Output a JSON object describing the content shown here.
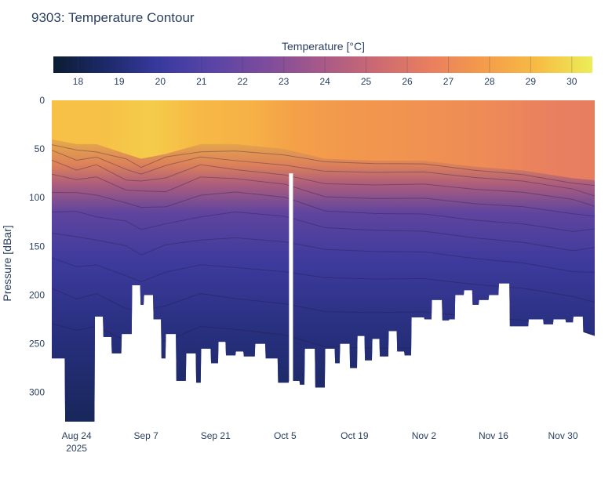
{
  "chart_data": {
    "type": "heatmap",
    "title": "9303: Temperature Contour",
    "xlabel": "",
    "ylabel": "Pressure [dBar]",
    "colorbar": {
      "title": "Temperature [°C]",
      "ticks": [
        18,
        19,
        20,
        21,
        22,
        23,
        24,
        25,
        26,
        27,
        28,
        29,
        30
      ],
      "range": [
        17.4,
        30.5
      ],
      "colors": [
        "#0d0887",
        "#46039f",
        "#7201a8",
        "#9c179e",
        "#bd3786",
        "#d8576b",
        "#ed7953",
        "#fb9f3a",
        "#fdca26",
        "#f0f921"
      ],
      "display_colors": [
        "#0b1d33",
        "#1c2a6b",
        "#3a3aa0",
        "#5b45a6",
        "#7f4c9c",
        "#a85a87",
        "#cc6a72",
        "#e97f5f",
        "#f49c4a",
        "#f7bd44",
        "#ecee58"
      ]
    },
    "x_ticks": [
      {
        "label": "Aug 24",
        "sub": "2025",
        "day": 0
      },
      {
        "label": "Sep 7",
        "sub": "",
        "day": 14
      },
      {
        "label": "Sep 21",
        "sub": "",
        "day": 28
      },
      {
        "label": "Oct 5",
        "sub": "",
        "day": 42
      },
      {
        "label": "Oct 19",
        "sub": "",
        "day": 56
      },
      {
        "label": "Nov 2",
        "sub": "",
        "day": 70
      },
      {
        "label": "Nov 16",
        "sub": "",
        "day": 84
      },
      {
        "label": "Nov 30",
        "sub": "",
        "day": 98
      }
    ],
    "x_range_days": [
      -5,
      104.4
    ],
    "y_ticks": [
      0,
      50,
      100,
      150,
      200,
      250,
      300
    ],
    "y_range": [
      0,
      330
    ],
    "gap_days": [
      42.8,
      43.6
    ],
    "mixed_layer_depth": [
      {
        "day": -5,
        "depth": 40
      },
      {
        "day": 0,
        "depth": 45
      },
      {
        "day": 4,
        "depth": 45
      },
      {
        "day": 10,
        "depth": 55
      },
      {
        "day": 13,
        "depth": 60
      },
      {
        "day": 18,
        "depth": 55
      },
      {
        "day": 25,
        "depth": 45
      },
      {
        "day": 32,
        "depth": 45
      },
      {
        "day": 42,
        "depth": 50
      },
      {
        "day": 50,
        "depth": 60
      },
      {
        "day": 60,
        "depth": 62
      },
      {
        "day": 70,
        "depth": 62
      },
      {
        "day": 80,
        "depth": 68
      },
      {
        "day": 90,
        "depth": 72
      },
      {
        "day": 100,
        "depth": 80
      },
      {
        "day": 104.4,
        "depth": 82
      }
    ],
    "surface_temperature": [
      {
        "day": -5,
        "temp": 29.3
      },
      {
        "day": 5,
        "temp": 29.3
      },
      {
        "day": 15,
        "temp": 29.6
      },
      {
        "day": 25,
        "temp": 29.0
      },
      {
        "day": 35,
        "temp": 28.7
      },
      {
        "day": 45,
        "temp": 28.0
      },
      {
        "day": 55,
        "temp": 27.7
      },
      {
        "day": 65,
        "temp": 27.5
      },
      {
        "day": 75,
        "temp": 27.3
      },
      {
        "day": 85,
        "temp": 27.0
      },
      {
        "day": 95,
        "temp": 26.6
      },
      {
        "day": 104.4,
        "temp": 26.5
      }
    ],
    "max_depth_profile": [
      {
        "day": -5,
        "depth": 265
      },
      {
        "day": -2.4,
        "depth": 265
      },
      {
        "day": -2.3,
        "depth": 330
      },
      {
        "day": 3.6,
        "depth": 330
      },
      {
        "day": 3.7,
        "depth": 222
      },
      {
        "day": 5.3,
        "depth": 222
      },
      {
        "day": 5.4,
        "depth": 243
      },
      {
        "day": 7.0,
        "depth": 243
      },
      {
        "day": 7.1,
        "depth": 260
      },
      {
        "day": 9.0,
        "depth": 260
      },
      {
        "day": 9.1,
        "depth": 240
      },
      {
        "day": 11.1,
        "depth": 240
      },
      {
        "day": 11.2,
        "depth": 190
      },
      {
        "day": 12.8,
        "depth": 190
      },
      {
        "day": 12.9,
        "depth": 210
      },
      {
        "day": 13.5,
        "depth": 210
      },
      {
        "day": 13.6,
        "depth": 200
      },
      {
        "day": 15.4,
        "depth": 200
      },
      {
        "day": 15.5,
        "depth": 225
      },
      {
        "day": 17.0,
        "depth": 225
      },
      {
        "day": 17.1,
        "depth": 265
      },
      {
        "day": 17.9,
        "depth": 265
      },
      {
        "day": 18.0,
        "depth": 240
      },
      {
        "day": 20.0,
        "depth": 240
      },
      {
        "day": 20.1,
        "depth": 288
      },
      {
        "day": 22.0,
        "depth": 288
      },
      {
        "day": 22.1,
        "depth": 260
      },
      {
        "day": 24.0,
        "depth": 260
      },
      {
        "day": 24.1,
        "depth": 290
      },
      {
        "day": 25.0,
        "depth": 290
      },
      {
        "day": 25.1,
        "depth": 255
      },
      {
        "day": 27.0,
        "depth": 255
      },
      {
        "day": 27.1,
        "depth": 270
      },
      {
        "day": 28.5,
        "depth": 270
      },
      {
        "day": 28.6,
        "depth": 248
      },
      {
        "day": 30.0,
        "depth": 248
      },
      {
        "day": 30.1,
        "depth": 262
      },
      {
        "day": 32.0,
        "depth": 262
      },
      {
        "day": 32.1,
        "depth": 258
      },
      {
        "day": 33.6,
        "depth": 258
      },
      {
        "day": 33.7,
        "depth": 263
      },
      {
        "day": 35.9,
        "depth": 263
      },
      {
        "day": 36.0,
        "depth": 250
      },
      {
        "day": 38.0,
        "depth": 250
      },
      {
        "day": 38.1,
        "depth": 265
      },
      {
        "day": 40.5,
        "depth": 265
      },
      {
        "day": 40.6,
        "depth": 290
      },
      {
        "day": 42.7,
        "depth": 290
      },
      {
        "day": 42.8,
        "depth": 288
      },
      {
        "day": 44.9,
        "depth": 288
      },
      {
        "day": 45.0,
        "depth": 292
      },
      {
        "day": 45.9,
        "depth": 292
      },
      {
        "day": 46.0,
        "depth": 255
      },
      {
        "day": 48.0,
        "depth": 255
      },
      {
        "day": 48.1,
        "depth": 295
      },
      {
        "day": 50.0,
        "depth": 295
      },
      {
        "day": 50.1,
        "depth": 255
      },
      {
        "day": 52.0,
        "depth": 255
      },
      {
        "day": 52.1,
        "depth": 270
      },
      {
        "day": 53.0,
        "depth": 270
      },
      {
        "day": 53.1,
        "depth": 250
      },
      {
        "day": 55.0,
        "depth": 250
      },
      {
        "day": 55.1,
        "depth": 275
      },
      {
        "day": 56.5,
        "depth": 275
      },
      {
        "day": 56.6,
        "depth": 242
      },
      {
        "day": 58.0,
        "depth": 242
      },
      {
        "day": 58.1,
        "depth": 267
      },
      {
        "day": 59.5,
        "depth": 267
      },
      {
        "day": 59.6,
        "depth": 245
      },
      {
        "day": 61.0,
        "depth": 245
      },
      {
        "day": 61.1,
        "depth": 263
      },
      {
        "day": 62.8,
        "depth": 263
      },
      {
        "day": 62.9,
        "depth": 237
      },
      {
        "day": 64.5,
        "depth": 237
      },
      {
        "day": 64.6,
        "depth": 258
      },
      {
        "day": 66.0,
        "depth": 258
      },
      {
        "day": 66.1,
        "depth": 262
      },
      {
        "day": 67.4,
        "depth": 262
      },
      {
        "day": 67.5,
        "depth": 223
      },
      {
        "day": 70.0,
        "depth": 223
      },
      {
        "day": 70.1,
        "depth": 225
      },
      {
        "day": 71.5,
        "depth": 225
      },
      {
        "day": 71.6,
        "depth": 205
      },
      {
        "day": 73.6,
        "depth": 205
      },
      {
        "day": 73.7,
        "depth": 226
      },
      {
        "day": 75.0,
        "depth": 226
      },
      {
        "day": 75.1,
        "depth": 225
      },
      {
        "day": 76.2,
        "depth": 225
      },
      {
        "day": 76.3,
        "depth": 200
      },
      {
        "day": 78.0,
        "depth": 200
      },
      {
        "day": 78.1,
        "depth": 195
      },
      {
        "day": 79.7,
        "depth": 195
      },
      {
        "day": 79.8,
        "depth": 210
      },
      {
        "day": 81.0,
        "depth": 210
      },
      {
        "day": 81.1,
        "depth": 205
      },
      {
        "day": 83.0,
        "depth": 205
      },
      {
        "day": 83.1,
        "depth": 200
      },
      {
        "day": 85.0,
        "depth": 200
      },
      {
        "day": 85.1,
        "depth": 188
      },
      {
        "day": 87.2,
        "depth": 188
      },
      {
        "day": 87.3,
        "depth": 232
      },
      {
        "day": 91.0,
        "depth": 232
      },
      {
        "day": 91.1,
        "depth": 225
      },
      {
        "day": 94.0,
        "depth": 225
      },
      {
        "day": 94.1,
        "depth": 230
      },
      {
        "day": 96.0,
        "depth": 230
      },
      {
        "day": 96.1,
        "depth": 225
      },
      {
        "day": 98.5,
        "depth": 225
      },
      {
        "day": 98.6,
        "depth": 228
      },
      {
        "day": 100.0,
        "depth": 228
      },
      {
        "day": 100.1,
        "depth": 222
      },
      {
        "day": 102.0,
        "depth": 222
      },
      {
        "day": 102.1,
        "depth": 238
      },
      {
        "day": 104.4,
        "depth": 242
      }
    ]
  }
}
